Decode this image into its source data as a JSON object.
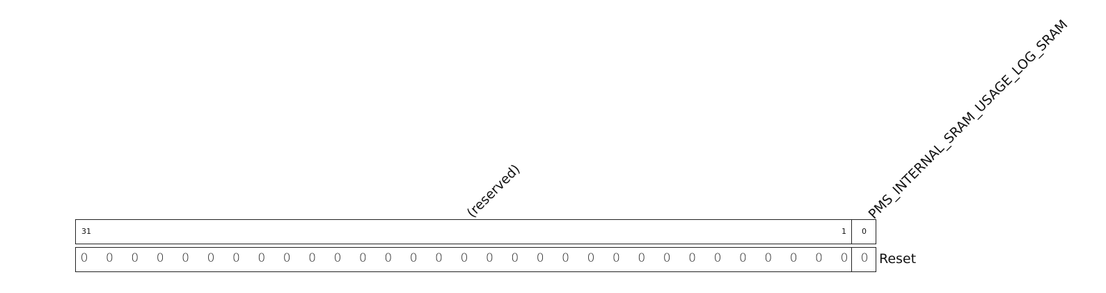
{
  "register": {
    "fields": [
      {
        "name": "(reserved)",
        "msb": "31",
        "lsb": "1"
      },
      {
        "name": "PMS_INTERNAL_SRAM_USAGE_LOG_SRAM",
        "bit": "0"
      }
    ],
    "reset_label": "Reset",
    "reset_values": [
      "0",
      "0",
      "0",
      "0",
      "0",
      "0",
      "0",
      "0",
      "0",
      "0",
      "0",
      "0",
      "0",
      "0",
      "0",
      "0",
      "0",
      "0",
      "0",
      "0",
      "0",
      "0",
      "0",
      "0",
      "0",
      "0",
      "0",
      "0",
      "0",
      "0",
      "0",
      "0"
    ]
  }
}
